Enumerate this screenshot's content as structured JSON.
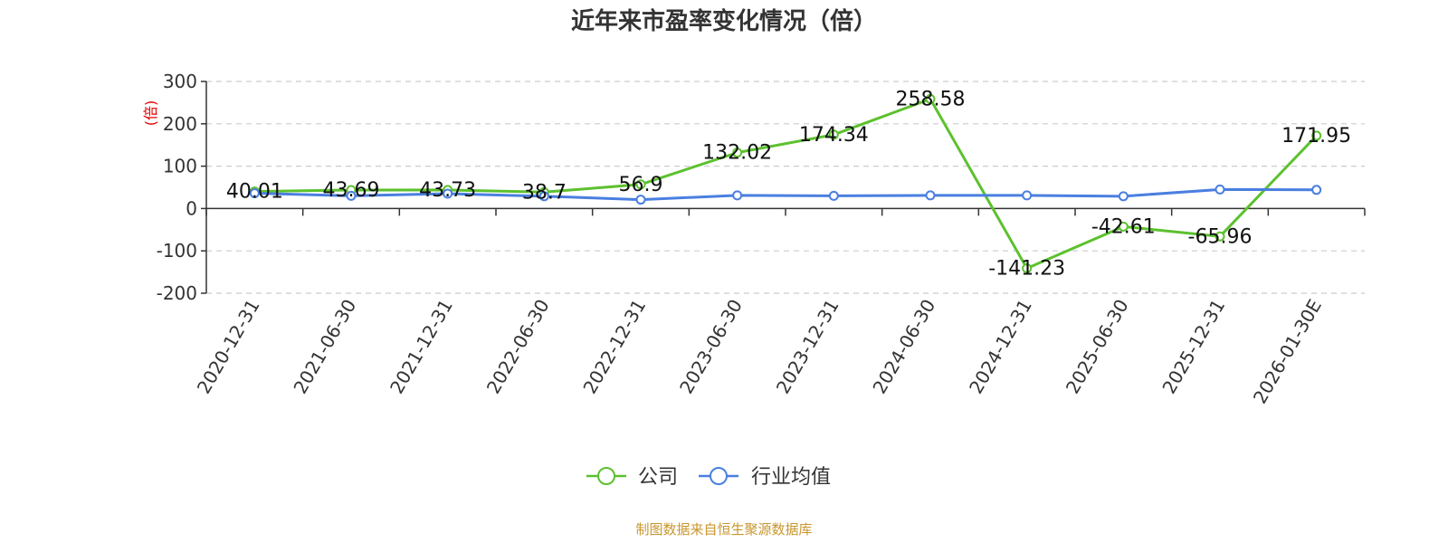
{
  "chart_data": {
    "type": "line",
    "title": "近年来市盈率变化情况（倍）",
    "ylabel": "(倍)",
    "categories": [
      "2020-12-31",
      "2021-06-30",
      "2021-12-31",
      "2022-06-30",
      "2022-12-31",
      "2023-06-30",
      "2023-12-31",
      "2024-06-30",
      "2024-12-31",
      "2025-06-30",
      "2025-12-31",
      "2026-01-30E"
    ],
    "ylim": [
      -200,
      300
    ],
    "yticks": [
      -200,
      -100,
      0,
      100,
      200,
      300
    ],
    "grid": true,
    "legend_position": "bottom",
    "series": [
      {
        "name": "公司",
        "color": "#5cc12e",
        "values": [
          40.01,
          43.69,
          43.73,
          38.7,
          56.9,
          132.02,
          174.34,
          258.58,
          -141.23,
          -42.61,
          -65.96,
          171.95
        ],
        "labels": [
          "40.01",
          "43.69",
          "43.73",
          "38.7",
          "56.9",
          "132.02",
          "174.34",
          "258.58",
          "-141.23",
          "-42.61",
          "-65.96",
          "171.95"
        ]
      },
      {
        "name": "行业均值",
        "color": "#4a7fe0",
        "values": [
          36,
          30,
          35,
          29,
          21,
          31,
          30,
          31,
          31,
          29,
          45,
          44
        ]
      }
    ]
  },
  "source": "制图数据来自恒生聚源数据库"
}
